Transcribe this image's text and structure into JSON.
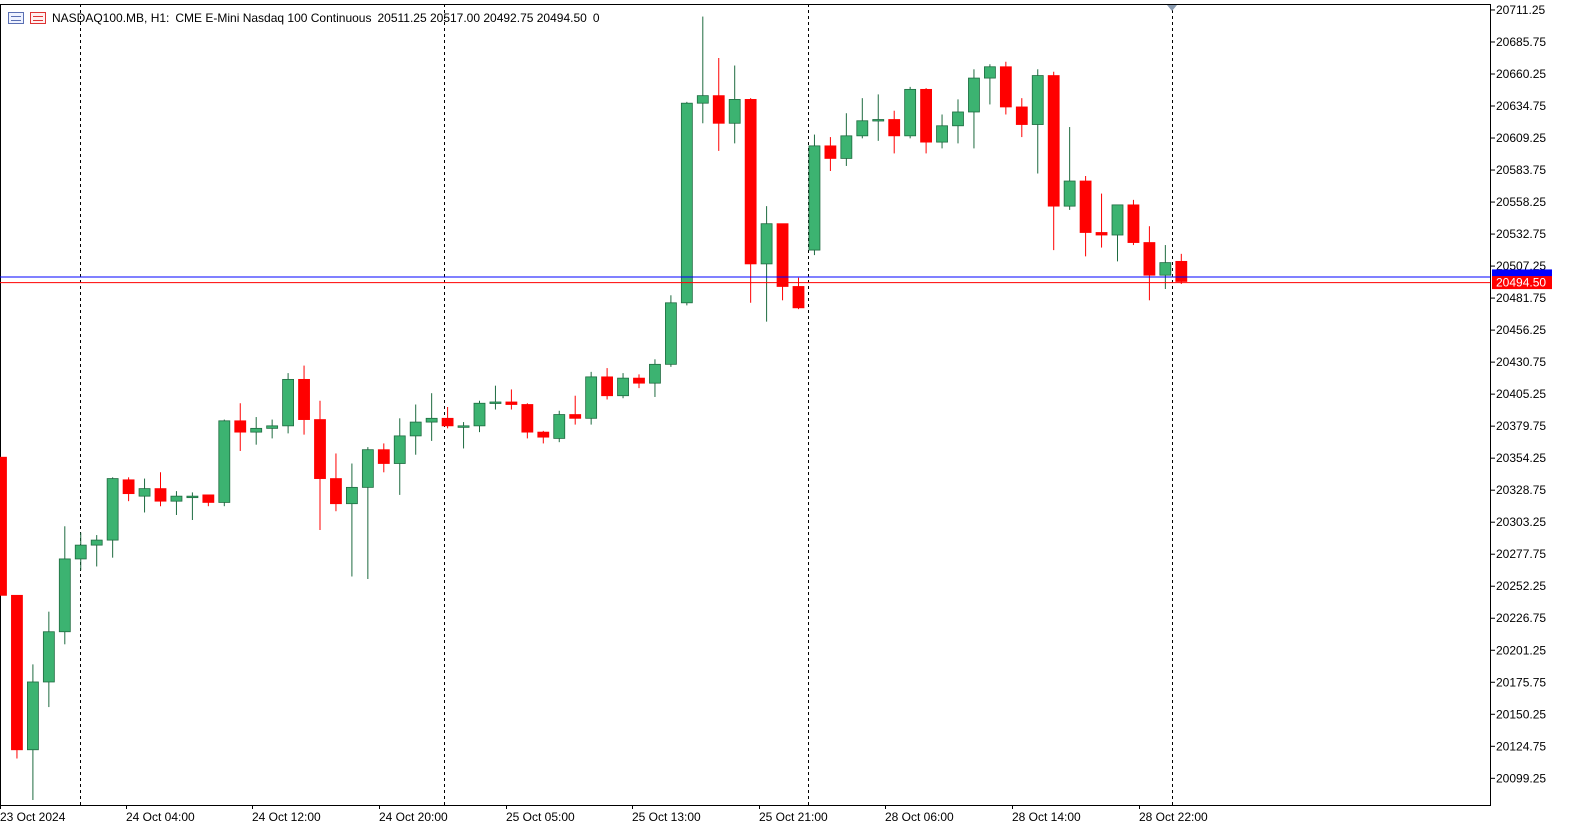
{
  "header": {
    "symbol": "NASDAQ100.MB, H1:",
    "description": "CME E-Mini Nasdaq 100 Continuous",
    "ohlc": "20511.25 20517.00 20492.75 20494.50",
    "volume": "0",
    "icons": [
      "chart-window-icon",
      "bar-chart-icon"
    ]
  },
  "colors": {
    "up": "#3cb371",
    "down": "#ff0000",
    "bid_line": "#0000ff",
    "ask_line": "#ff0000",
    "grid_sep": "#000000"
  },
  "chart_data": {
    "type": "candlestick",
    "ylim": [
      20078,
      20716
    ],
    "y_ticks": [
      "20711.25",
      "20685.75",
      "20660.25",
      "20634.75",
      "20609.25",
      "20583.75",
      "20558.25",
      "20532.75",
      "20507.25",
      "20481.75",
      "20456.25",
      "20430.75",
      "20405.25",
      "20379.75",
      "20354.25",
      "20328.75",
      "20303.25",
      "20277.75",
      "20252.25",
      "20226.75",
      "20201.25",
      "20175.75",
      "20150.25",
      "20124.75",
      "20099.25"
    ],
    "x_labels": [
      "23 Oct 2024",
      "24 Oct 04:00",
      "24 Oct 12:00",
      "24 Oct 20:00",
      "25 Oct 05:00",
      "25 Oct 13:00",
      "25 Oct 21:00",
      "28 Oct 06:00",
      "28 Oct 14:00",
      "28 Oct 22:00"
    ],
    "period_separators": [
      5,
      28,
      51,
      76,
      74
    ],
    "current_price_label": "20494.50",
    "bid_price": 20499,
    "ask_price": 20494.5,
    "candles": [
      [
        20355,
        20355,
        20245,
        20245
      ],
      [
        20245,
        20245,
        20115,
        20122
      ],
      [
        20122,
        20190,
        20082,
        20176
      ],
      [
        20176,
        20232,
        20156,
        20216
      ],
      [
        20216,
        20300,
        20206,
        20274
      ],
      [
        20274,
        20295,
        20265,
        20285
      ],
      [
        20285,
        20293,
        20268,
        20289
      ],
      [
        20289,
        20339,
        20275,
        20338
      ],
      [
        20337,
        20339,
        20320,
        20326
      ],
      [
        20324,
        20338,
        20311,
        20330
      ],
      [
        20330,
        20343,
        20316,
        20320
      ],
      [
        20320,
        20328,
        20309,
        20324
      ],
      [
        20323,
        20327,
        20305,
        20324
      ],
      [
        20325,
        20325,
        20316,
        20319
      ],
      [
        20319,
        20385,
        20316,
        20384
      ],
      [
        20384,
        20398,
        20360,
        20375
      ],
      [
        20375,
        20387,
        20365,
        20378
      ],
      [
        20378,
        20385,
        20370,
        20380
      ],
      [
        20380,
        20422,
        20374,
        20417
      ],
      [
        20417,
        20428,
        20373,
        20385
      ],
      [
        20385,
        20400,
        20297,
        20338
      ],
      [
        20338,
        20358,
        20312,
        20318
      ],
      [
        20318,
        20350,
        20260,
        20331
      ],
      [
        20331,
        20363,
        20258,
        20361
      ],
      [
        20361,
        20366,
        20343,
        20350
      ],
      [
        20350,
        20386,
        20325,
        20372
      ],
      [
        20372,
        20397,
        20357,
        20383
      ],
      [
        20383,
        20406,
        20368,
        20386
      ],
      [
        20386,
        20395,
        20378,
        20380
      ],
      [
        20379,
        20383,
        20362,
        20380
      ],
      [
        20380,
        20400,
        20375,
        20398
      ],
      [
        20398,
        20412,
        20393,
        20399
      ],
      [
        20399,
        20409,
        20393,
        20397
      ],
      [
        20397,
        20398,
        20370,
        20375
      ],
      [
        20375,
        20376,
        20366,
        20371
      ],
      [
        20370,
        20392,
        20367,
        20389
      ],
      [
        20389,
        20404,
        20381,
        20386
      ],
      [
        20386,
        20423,
        20381,
        20419
      ],
      [
        20419,
        20426,
        20401,
        20404
      ],
      [
        20404,
        20422,
        20402,
        20418
      ],
      [
        20418,
        20421,
        20410,
        20414
      ],
      [
        20414,
        20433,
        20403,
        20429
      ],
      [
        20429,
        20484,
        20427,
        20478
      ],
      [
        20478,
        20638,
        20476,
        20637
      ],
      [
        20637,
        20706,
        20621,
        20643
      ],
      [
        20643,
        20673,
        20599,
        20621
      ],
      [
        20621,
        20667,
        20605,
        20640
      ],
      [
        20640,
        20641,
        20478,
        20509
      ],
      [
        20509,
        20555,
        20463,
        20541
      ],
      [
        20541,
        20541,
        20480,
        20491
      ],
      [
        20491,
        20498,
        20473,
        20474
      ],
      [
        20520,
        20612,
        20516,
        20603
      ],
      [
        20603,
        20610,
        20583,
        20593
      ],
      [
        20593,
        20629,
        20587,
        20611
      ],
      [
        20611,
        20641,
        20609,
        20623
      ],
      [
        20623,
        20644,
        20607,
        20624
      ],
      [
        20624,
        20631,
        20597,
        20611
      ],
      [
        20611,
        20650,
        20609,
        20648
      ],
      [
        20648,
        20649,
        20597,
        20606
      ],
      [
        20606,
        20628,
        20601,
        20619
      ],
      [
        20619,
        20640,
        20605,
        20630
      ],
      [
        20630,
        20664,
        20601,
        20657
      ],
      [
        20657,
        20668,
        20636,
        20666
      ],
      [
        20666,
        20670,
        20628,
        20634
      ],
      [
        20634,
        20641,
        20610,
        20620
      ],
      [
        20620,
        20664,
        20581,
        20659
      ],
      [
        20659,
        20662,
        20520,
        20555
      ],
      [
        20555,
        20618,
        20552,
        20575
      ],
      [
        20575,
        20579,
        20515,
        20534
      ],
      [
        20534,
        20565,
        20522,
        20532
      ],
      [
        20532,
        20555,
        20511,
        20556
      ],
      [
        20556,
        20560,
        20524,
        20526
      ],
      [
        20526,
        20539,
        20480,
        20500
      ],
      [
        20500,
        20524,
        20489,
        20510
      ],
      [
        20511,
        20517,
        20493,
        20495
      ]
    ]
  }
}
